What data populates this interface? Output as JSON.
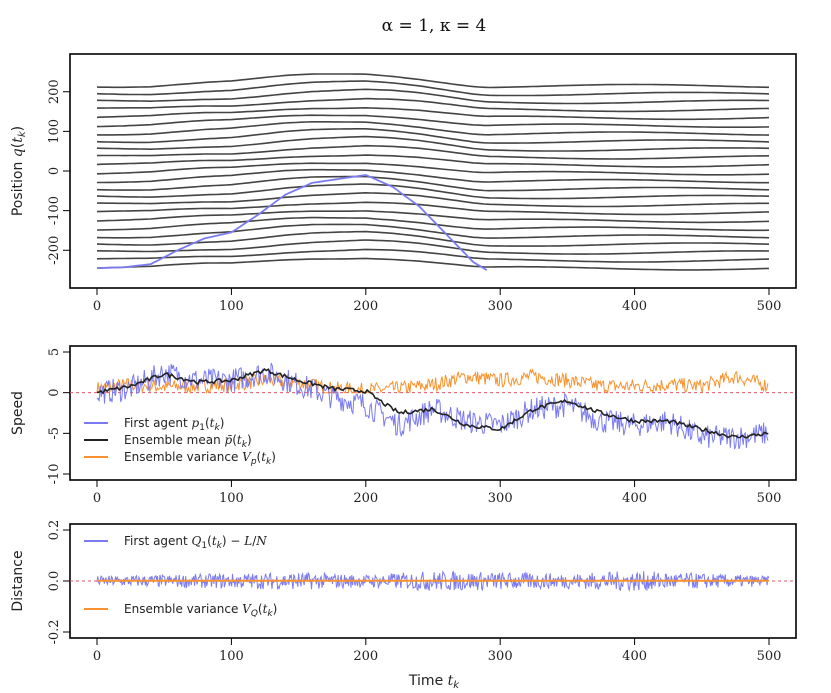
{
  "title": "α = 1, κ = 4",
  "colors": {
    "trajectory": "#444444",
    "first_agent": "#7b7bf0",
    "ensemble_mean": "#222222",
    "ensemble_variance": "#f7922e",
    "reference_line": "#e0566a"
  },
  "chart_data": [
    {
      "type": "line",
      "panel": "position",
      "ylabel": "Position q(t_k)",
      "xlim": [
        0,
        500
      ],
      "ylim": [
        -270,
        270
      ],
      "x_ticks": [
        0,
        100,
        200,
        300,
        400,
        500
      ],
      "y_ticks": [
        -200,
        -100,
        0,
        100,
        200
      ],
      "series": [
        {
          "name": "first agent trajectory",
          "x": [
            0,
            20,
            40,
            60,
            80,
            100,
            120,
            140,
            160,
            180,
            200,
            220,
            240,
            260,
            280,
            290
          ],
          "y": [
            -245,
            -243,
            -235,
            -200,
            -170,
            -155,
            -110,
            -60,
            -30,
            -20,
            -10,
            -40,
            -90,
            -160,
            -230,
            -250
          ]
        }
      ]
    },
    {
      "type": "line",
      "panel": "speed",
      "ylabel": "Speed",
      "xlim": [
        0,
        500
      ],
      "ylim": [
        -10,
        5
      ],
      "x_ticks": [
        0,
        100,
        200,
        300,
        400,
        500
      ],
      "y_ticks": [
        -10,
        -5,
        0,
        5
      ],
      "series": [
        {
          "name": "First agent p_1(t_k)",
          "x": [
            0,
            25,
            50,
            75,
            100,
            125,
            150,
            175,
            200,
            225,
            250,
            275,
            300,
            325,
            350,
            375,
            400,
            425,
            450,
            475,
            500
          ],
          "y": [
            0,
            0.5,
            2.5,
            1.5,
            1.5,
            2.5,
            1,
            -0.5,
            -1.5,
            -4,
            -2,
            -3.5,
            -4,
            -2,
            -1.5,
            -3.5,
            -4,
            -3.5,
            -5.5,
            -5.5,
            -5
          ]
        },
        {
          "name": "Ensemble mean p̄(t_k)",
          "x": [
            0,
            25,
            50,
            75,
            100,
            125,
            150,
            175,
            200,
            215,
            225,
            250,
            275,
            300,
            325,
            350,
            375,
            400,
            425,
            450,
            475,
            500
          ],
          "y": [
            0,
            0.8,
            2.3,
            1.3,
            1.5,
            2.8,
            1.5,
            0.5,
            0.2,
            -1.5,
            -2.5,
            -2,
            -4,
            -4.5,
            -2,
            -1,
            -2.5,
            -3.5,
            -3.5,
            -4.5,
            -5.5,
            -5
          ]
        },
        {
          "name": "Ensemble variance V_p(t_k)",
          "x": [
            0,
            25,
            50,
            75,
            100,
            125,
            150,
            175,
            200,
            225,
            250,
            275,
            300,
            325,
            350,
            375,
            400,
            425,
            450,
            475,
            500
          ],
          "y": [
            0.5,
            1,
            0.7,
            0.8,
            1,
            1.5,
            1.2,
            0.5,
            0.3,
            0.5,
            1,
            2,
            1.5,
            2,
            1.5,
            0.8,
            0.8,
            1,
            0.8,
            2,
            0.8
          ]
        }
      ],
      "reference_line": 0
    },
    {
      "type": "line",
      "panel": "distance",
      "ylabel": "Distance",
      "xlim": [
        0,
        500
      ],
      "ylim": [
        -0.2,
        0.2
      ],
      "x_ticks": [
        0,
        100,
        200,
        300,
        400,
        500
      ],
      "y_ticks": [
        -0.2,
        0.0,
        0.2
      ],
      "xlabel": "Time t_k",
      "series": [
        {
          "name": "First agent Q_1(t_k) − L/N",
          "x": [
            0,
            50,
            100,
            150,
            200,
            250,
            300,
            350,
            400,
            450,
            500
          ],
          "amplitude": [
            0.02,
            0.025,
            0.03,
            0.035,
            0.025,
            0.04,
            0.035,
            0.03,
            0.04,
            0.03,
            0.02
          ]
        },
        {
          "name": "Ensemble variance V_Q(t_k)",
          "x": [
            0,
            500
          ],
          "y": [
            0.001,
            0.001
          ]
        }
      ],
      "reference_line": 0
    }
  ],
  "legend_speed": {
    "first_agent": "First agent p",
    "first_agent_sub": "1",
    "first_agent_tail": "(t",
    "ensemble_mean": "Ensemble mean ",
    "ensemble_variance": "Ensemble variance V"
  },
  "legend_distance": {
    "first_agent": "First agent Q",
    "ensemble_variance": "Ensemble variance V"
  }
}
